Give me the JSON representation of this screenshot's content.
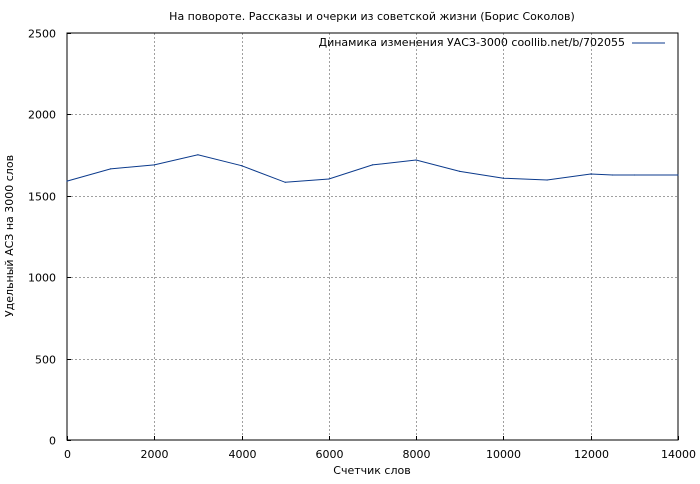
{
  "chart_data": {
    "type": "line",
    "title": "На повороте. Рассказы и очерки из советской жизни (Борис Соколов)",
    "xlabel": "Счетчик слов",
    "ylabel": "Удельный АСЗ на 3000 слов",
    "xlim": [
      0,
      14000
    ],
    "ylim": [
      0,
      2500
    ],
    "xticks": [
      0,
      2000,
      4000,
      6000,
      8000,
      10000,
      12000,
      14000
    ],
    "yticks": [
      0,
      500,
      1000,
      1500,
      2000,
      2500
    ],
    "xtick_labels": [
      "0",
      "2000",
      "4000",
      "6000",
      "8000",
      "10000",
      "12000",
      "14000"
    ],
    "ytick_labels": [
      "0",
      "500",
      "1000",
      "1500",
      "2000",
      "2500"
    ],
    "grid": true,
    "legend_position": "top-right",
    "series": [
      {
        "name": "Динамика изменения УАСЗ-3000 coollib.net/b/702055",
        "color": "#0b3a8c",
        "x": [
          0,
          1000,
          2000,
          3000,
          4000,
          5000,
          6000,
          7000,
          8000,
          9000,
          10000,
          11000,
          12000,
          12500,
          13000,
          14000
        ],
        "y": [
          1590,
          1665,
          1690,
          1752,
          1685,
          1583,
          1603,
          1690,
          1720,
          1650,
          1608,
          1597,
          1634,
          1628,
          1628,
          1628
        ]
      }
    ]
  }
}
